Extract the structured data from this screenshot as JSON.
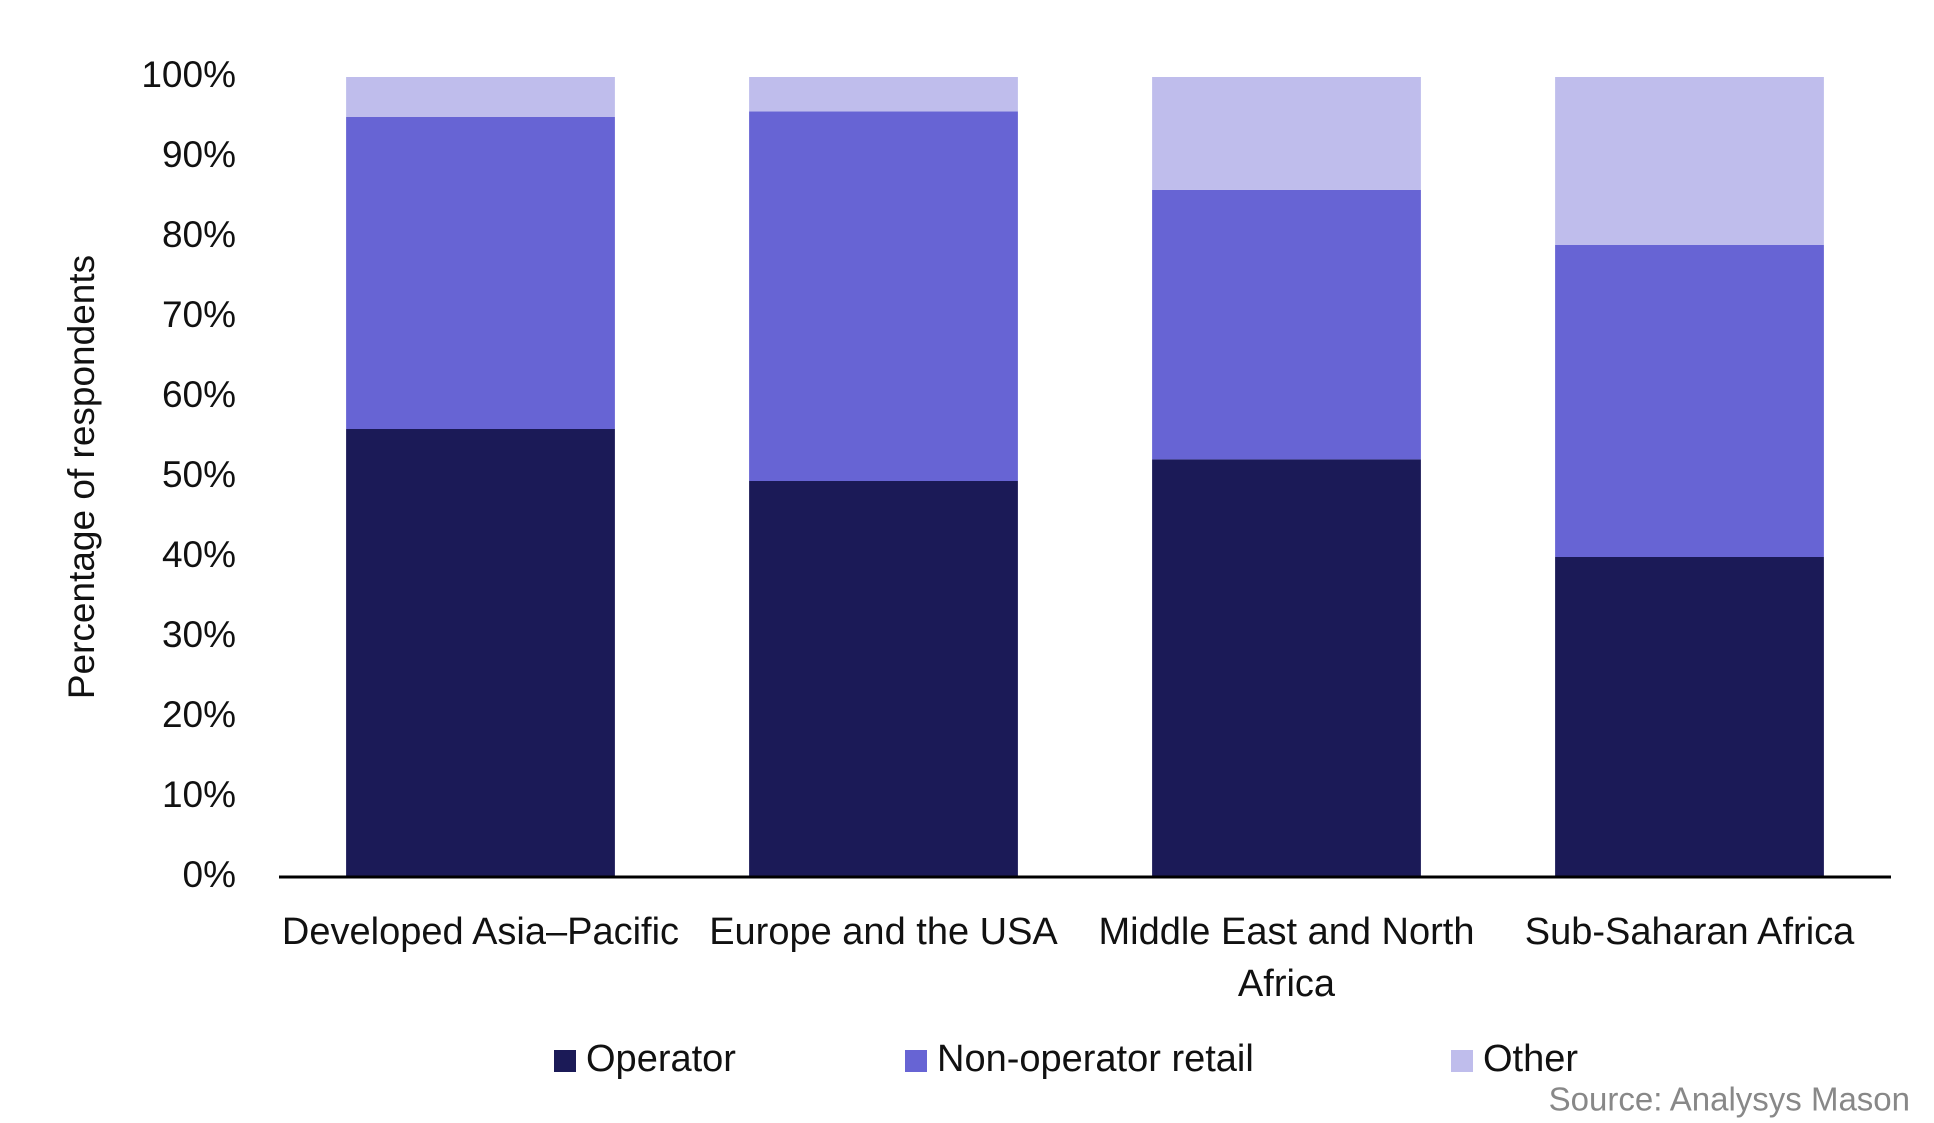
{
  "chart_data": {
    "type": "stacked_bar",
    "y_label": "Percentage of respondents",
    "categories": [
      "Developed Asia–Pacific",
      "Europe and the USA",
      "Middle East and North Africa",
      "Sub-Saharan Africa"
    ],
    "series": [
      {
        "name": "Operator",
        "color": "#1b1a57",
        "values": [
          56,
          49.5,
          52.2,
          40
        ]
      },
      {
        "name": "Non-operator retail",
        "color": "#6764d4",
        "values": [
          39,
          46.2,
          33.7,
          39
        ]
      },
      {
        "name": "Other",
        "color": "#bfbdec",
        "values": [
          5,
          4.3,
          14.1,
          21
        ]
      }
    ],
    "ylim": [
      0,
      100
    ],
    "yticks": [
      {
        "value": 0,
        "label": "0%"
      },
      {
        "value": 10,
        "label": "10%"
      },
      {
        "value": 20,
        "label": "20%"
      },
      {
        "value": 30,
        "label": "30%"
      },
      {
        "value": 40,
        "label": "40%"
      },
      {
        "value": 50,
        "label": "50%"
      },
      {
        "value": 60,
        "label": "60%"
      },
      {
        "value": 70,
        "label": "70%"
      },
      {
        "value": 80,
        "label": "80%"
      },
      {
        "value": 90,
        "label": "90%"
      },
      {
        "value": 100,
        "label": "100%"
      }
    ],
    "grid": false,
    "legend": "bottom",
    "source": "Source: Analysys Mason"
  }
}
